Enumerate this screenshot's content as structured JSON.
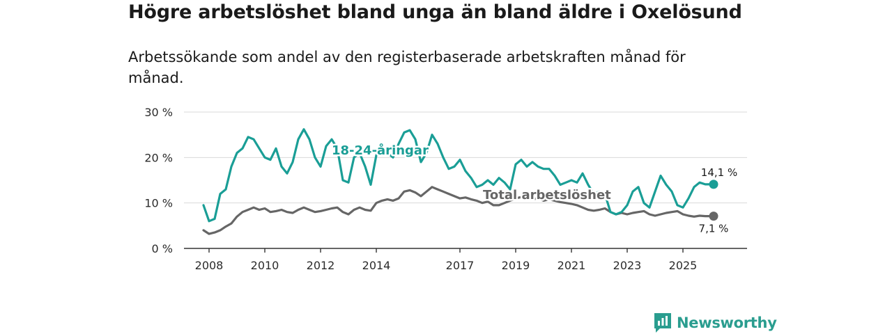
{
  "title": "Högre arbetslöshet bland unga än bland äldre i Oxelösund",
  "subtitle": "Arbetssökande som andel av den registerbaserade arbetskraften månad för månad.",
  "brand": {
    "name": "Newsworthy",
    "color": "#2a9d8f"
  },
  "chart_data": {
    "type": "line",
    "title": "Högre arbetslöshet bland unga än bland äldre i Oxelösund",
    "xlabel": "",
    "ylabel": "",
    "xlim": [
      2008,
      2026.5
    ],
    "ylim": [
      0,
      30
    ],
    "yticks": [
      0,
      10,
      20,
      30
    ],
    "ytick_labels": [
      "0 %",
      "10 %",
      "20 %",
      "30 %"
    ],
    "xticks": [
      2008,
      2010,
      2012,
      2014,
      2017,
      2019,
      2021,
      2023,
      2025
    ],
    "xtick_labels": [
      "2008",
      "2010",
      "2012",
      "2014",
      "2017",
      "2019",
      "2021",
      "2023",
      "2025"
    ],
    "grid": true,
    "series": [
      {
        "name": "18-24-åringar",
        "label": "18-24-åringar",
        "color": "#1a9e96",
        "end_label": "14,1 %",
        "x": [
          2007.8,
          2008.0,
          2008.2,
          2008.4,
          2008.6,
          2008.8,
          2009.0,
          2009.2,
          2009.4,
          2009.6,
          2009.8,
          2010.0,
          2010.2,
          2010.4,
          2010.6,
          2010.8,
          2011.0,
          2011.2,
          2011.4,
          2011.6,
          2011.8,
          2012.0,
          2012.2,
          2012.4,
          2012.6,
          2012.8,
          2013.0,
          2013.2,
          2013.4,
          2013.6,
          2013.8,
          2014.0,
          2014.2,
          2014.4,
          2014.6,
          2014.8,
          2015.0,
          2015.2,
          2015.4,
          2015.6,
          2015.8,
          2016.0,
          2016.2,
          2016.4,
          2016.6,
          2016.8,
          2017.0,
          2017.2,
          2017.4,
          2017.6,
          2017.8,
          2018.0,
          2018.2,
          2018.4,
          2018.6,
          2018.8,
          2019.0,
          2019.2,
          2019.4,
          2019.6,
          2019.8,
          2020.0,
          2020.2,
          2020.4,
          2020.6,
          2020.8,
          2021.0,
          2021.2,
          2021.4,
          2021.6,
          2021.8,
          2022.0,
          2022.2,
          2022.4,
          2022.6,
          2022.8,
          2023.0,
          2023.2,
          2023.4,
          2023.6,
          2023.8,
          2024.0,
          2024.2,
          2024.4,
          2024.6,
          2024.8,
          2025.0,
          2025.2,
          2025.4,
          2025.6,
          2025.8,
          2026.0,
          2026.1
        ],
        "y": [
          9.5,
          6.0,
          6.5,
          12.0,
          13.0,
          18.0,
          21.0,
          22.0,
          24.5,
          24.0,
          22.0,
          20.0,
          19.5,
          22.0,
          18.0,
          16.5,
          19.0,
          24.0,
          26.2,
          24.0,
          20.0,
          18.0,
          22.5,
          24.0,
          22.0,
          15.0,
          14.5,
          20.0,
          21.0,
          18.0,
          14.0,
          20.5,
          22.0,
          21.0,
          20.0,
          23.0,
          25.5,
          26.0,
          24.0,
          19.0,
          21.0,
          25.0,
          23.0,
          20.0,
          17.5,
          18.0,
          19.5,
          17.0,
          15.5,
          13.5,
          14.0,
          15.0,
          14.0,
          15.5,
          14.5,
          13.0,
          18.5,
          19.5,
          18.0,
          19.0,
          18.0,
          17.5,
          17.5,
          16.0,
          14.0,
          14.5,
          15.0,
          14.5,
          16.5,
          14.0,
          12.0,
          12.5,
          12.0,
          8.0,
          7.5,
          8.0,
          9.5,
          12.5,
          13.5,
          10.0,
          9.0,
          12.5,
          16.0,
          14.0,
          12.5,
          9.5,
          9.0,
          11.0,
          13.5,
          14.5,
          14.1,
          14.1,
          14.1
        ]
      },
      {
        "name": "Total arbetslöshet",
        "label": "Total arbetslöshet",
        "color": "#666666",
        "end_label": "7,1 %",
        "x": [
          2007.8,
          2008.0,
          2008.2,
          2008.4,
          2008.6,
          2008.8,
          2009.0,
          2009.2,
          2009.4,
          2009.6,
          2009.8,
          2010.0,
          2010.2,
          2010.4,
          2010.6,
          2010.8,
          2011.0,
          2011.2,
          2011.4,
          2011.6,
          2011.8,
          2012.0,
          2012.2,
          2012.4,
          2012.6,
          2012.8,
          2013.0,
          2013.2,
          2013.4,
          2013.6,
          2013.8,
          2014.0,
          2014.2,
          2014.4,
          2014.6,
          2014.8,
          2015.0,
          2015.2,
          2015.4,
          2015.6,
          2015.8,
          2016.0,
          2016.2,
          2016.4,
          2016.6,
          2016.8,
          2017.0,
          2017.2,
          2017.4,
          2017.6,
          2017.8,
          2018.0,
          2018.2,
          2018.4,
          2018.6,
          2018.8,
          2019.0,
          2019.2,
          2019.4,
          2019.6,
          2019.8,
          2020.0,
          2020.2,
          2020.4,
          2020.6,
          2020.8,
          2021.0,
          2021.2,
          2021.4,
          2021.6,
          2021.8,
          2022.0,
          2022.2,
          2022.4,
          2022.6,
          2022.8,
          2023.0,
          2023.2,
          2023.4,
          2023.6,
          2023.8,
          2024.0,
          2024.2,
          2024.4,
          2024.6,
          2024.8,
          2025.0,
          2025.2,
          2025.4,
          2025.6,
          2025.8,
          2026.0,
          2026.1
        ],
        "y": [
          4.0,
          3.2,
          3.5,
          4.0,
          4.8,
          5.5,
          7.0,
          8.0,
          8.5,
          9.0,
          8.5,
          8.8,
          8.0,
          8.2,
          8.5,
          8.0,
          7.8,
          8.5,
          9.0,
          8.5,
          8.0,
          8.2,
          8.5,
          8.8,
          9.0,
          8.0,
          7.5,
          8.5,
          9.0,
          8.5,
          8.3,
          10.0,
          10.5,
          10.8,
          10.5,
          11.0,
          12.5,
          12.8,
          12.3,
          11.5,
          12.5,
          13.5,
          13.0,
          12.5,
          12.0,
          11.5,
          11.0,
          11.2,
          10.8,
          10.5,
          10.0,
          10.3,
          9.5,
          9.5,
          10.0,
          10.5,
          11.0,
          11.3,
          11.0,
          10.8,
          11.0,
          10.5,
          10.8,
          10.5,
          10.2,
          10.0,
          9.8,
          9.5,
          9.0,
          8.5,
          8.3,
          8.5,
          8.8,
          8.0,
          7.5,
          7.8,
          7.5,
          7.8,
          8.0,
          8.2,
          7.5,
          7.2,
          7.5,
          7.8,
          8.0,
          8.2,
          7.5,
          7.2,
          7.0,
          7.2,
          7.1,
          7.1,
          7.1
        ]
      }
    ]
  }
}
